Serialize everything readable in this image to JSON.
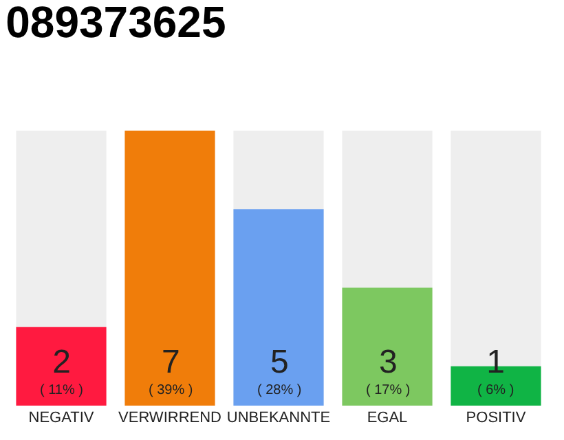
{
  "chart_data": {
    "type": "bar",
    "title": "089373625",
    "categories": [
      "NEGATIV",
      "VERWIRREND",
      "UNBEKANNTE",
      "EGAL",
      "POSITIV"
    ],
    "values": [
      2,
      7,
      5,
      3,
      1
    ],
    "colors": [
      "#ff1a40",
      "#f07d0a",
      "#6aa0f0",
      "#7dc860",
      "#10b445"
    ],
    "value_labels": [
      "2\n( 11% )",
      "7\n( 39% )",
      "5\n( 28% )",
      "3\n( 17% )",
      "1\n( 6% )"
    ]
  }
}
